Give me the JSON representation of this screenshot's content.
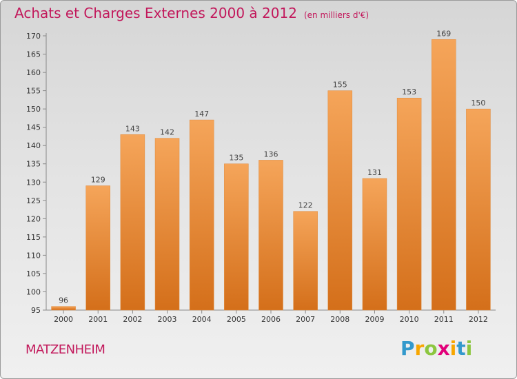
{
  "title": "Achats et Charges Externes 2000 à 2012",
  "subtitle": "(en milliers d'€)",
  "city": "MATZENHEIM",
  "logo": {
    "text": "Proxiti",
    "letters": [
      {
        "ch": "P",
        "color": "#3399cc"
      },
      {
        "ch": "r",
        "color": "#f7a600"
      },
      {
        "ch": "o",
        "color": "#8cc63f"
      },
      {
        "ch": "x",
        "color": "#e2007a"
      },
      {
        "ch": "i",
        "color": "#f7a600"
      },
      {
        "ch": "t",
        "color": "#3399cc"
      },
      {
        "ch": "i",
        "color": "#8cc63f"
      }
    ]
  },
  "chart_data": {
    "type": "bar",
    "title": "Achats et Charges Externes 2000 à 2012",
    "subtitle": "(en milliers d'€)",
    "categories": [
      "2000",
      "2001",
      "2002",
      "2003",
      "2004",
      "2005",
      "2006",
      "2007",
      "2008",
      "2009",
      "2010",
      "2011",
      "2012"
    ],
    "values": [
      96,
      129,
      143,
      142,
      147,
      135,
      136,
      122,
      155,
      131,
      153,
      169,
      150
    ],
    "ylim": [
      95,
      170
    ],
    "yticks": [
      95,
      100,
      105,
      110,
      115,
      120,
      125,
      130,
      135,
      140,
      145,
      150,
      155,
      160,
      165,
      170
    ],
    "bar_color": "#f0903a",
    "grid": false
  }
}
